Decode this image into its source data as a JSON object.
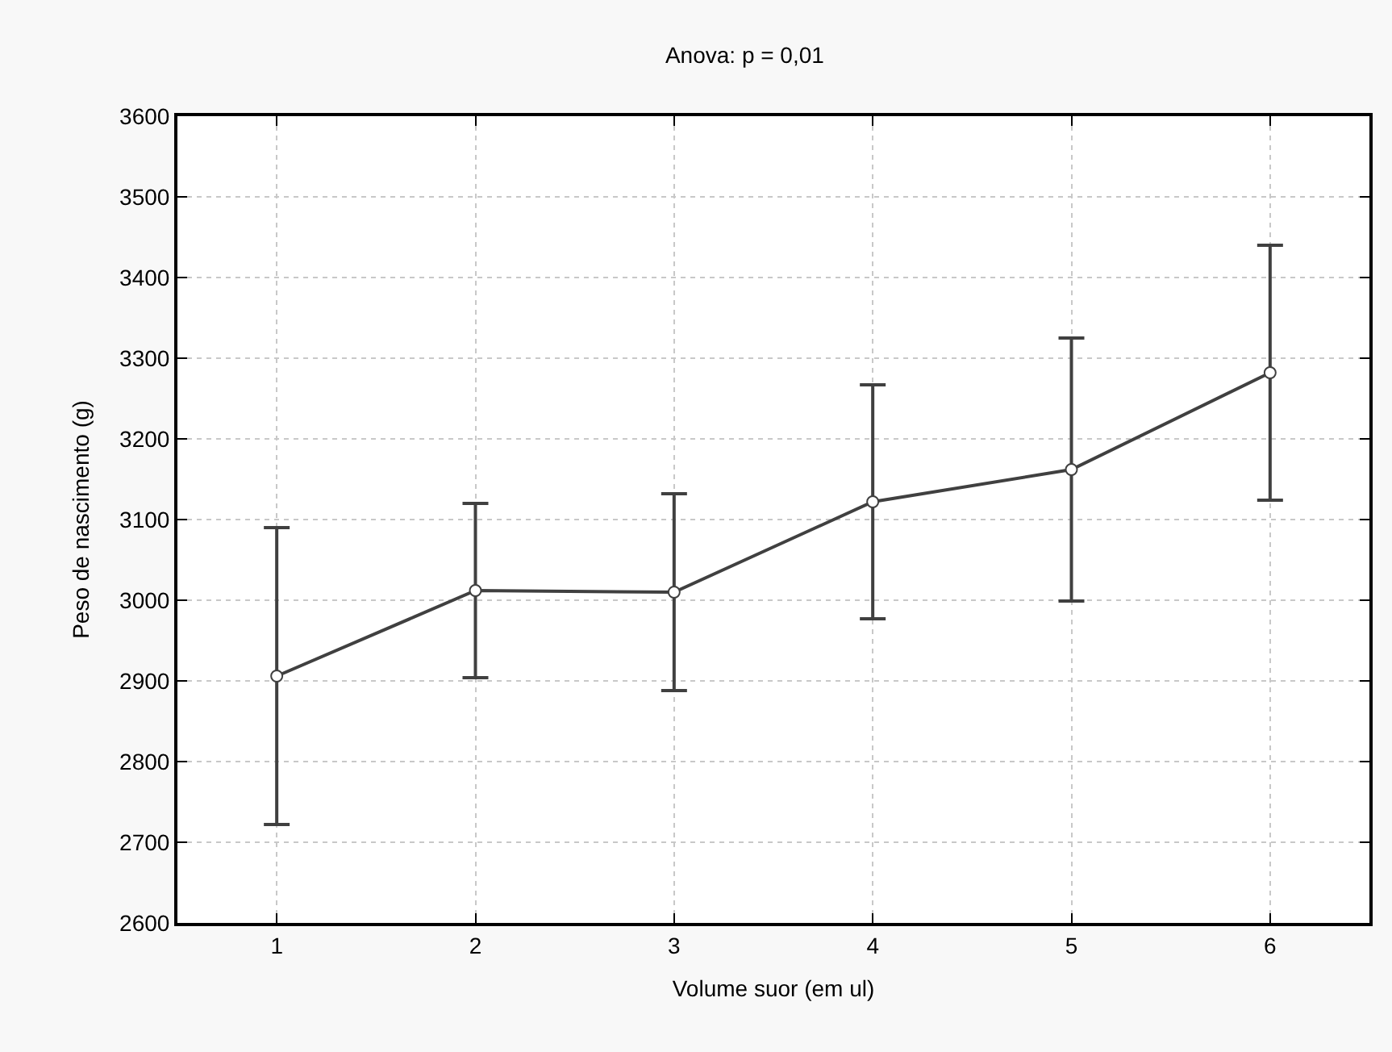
{
  "chart_data": {
    "type": "line",
    "title": "Anova: p = 0,01",
    "xlabel": "Volume suor (em ul)",
    "ylabel": "Peso de nascimento (g)",
    "x": [
      1,
      2,
      3,
      4,
      5,
      6
    ],
    "series": [
      {
        "color": "#404040",
        "values": [
          2906,
          3012,
          3010,
          3122,
          3162,
          3282
        ],
        "errors": [
          184,
          108,
          122,
          145,
          163,
          158
        ]
      }
    ],
    "xlim": [
      0.5,
      6.5
    ],
    "xticks": [
      1,
      2,
      3,
      4,
      5,
      6
    ],
    "ylim": [
      2600,
      3600
    ],
    "yticks": [
      2600,
      2700,
      2800,
      2900,
      3000,
      3100,
      3200,
      3300,
      3400,
      3500,
      3600
    ],
    "grid": true,
    "marker": "circle",
    "line_style": "solid"
  }
}
